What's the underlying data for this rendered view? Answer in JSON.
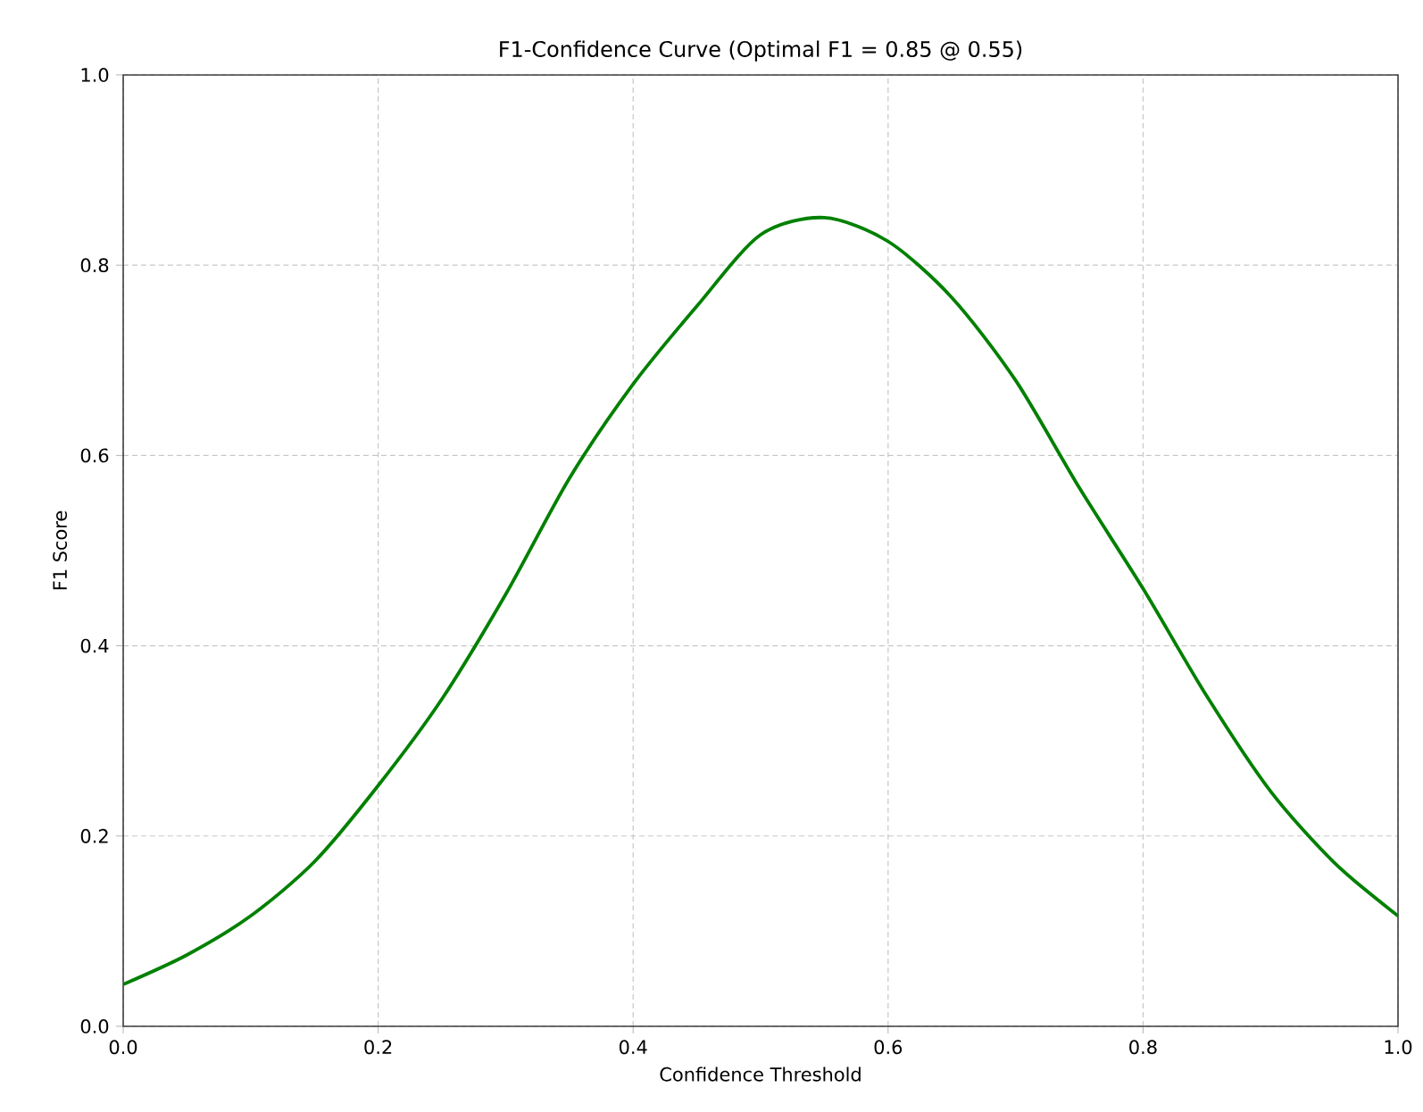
{
  "chart_data": {
    "type": "line",
    "title": "F1-Confidence Curve (Optimal F1 = 0.85 @ 0.55)",
    "xlabel": "Confidence Threshold",
    "ylabel": "F1 Score",
    "x": [
      0,
      0.05,
      0.1,
      0.15,
      0.2,
      0.25,
      0.3,
      0.35,
      0.4,
      0.45,
      0.5,
      0.55,
      0.6,
      0.65,
      0.7,
      0.75,
      0.8,
      0.85,
      0.9,
      0.95,
      1.0
    ],
    "series": [
      {
        "color": "#008000",
        "values": [
          0.044,
          0.075,
          0.116,
          0.173,
          0.253,
          0.344,
          0.454,
          0.576,
          0.675,
          0.757,
          0.832,
          0.85,
          0.825,
          0.766,
          0.679,
          0.566,
          0.46,
          0.347,
          0.247,
          0.172,
          0.116
        ]
      }
    ],
    "xlim": [
      0,
      1
    ],
    "ylim": [
      0,
      1
    ],
    "xticks": [
      {
        "value": 0,
        "label": "0.0"
      },
      0.2,
      0.4,
      0.6,
      0.8,
      {
        "value": 1,
        "label": "1.0"
      }
    ],
    "yticks": [
      {
        "value": 0,
        "label": "0.0"
      },
      0.2,
      0.4,
      0.6,
      0.8,
      {
        "value": 1,
        "label": "1.0"
      }
    ],
    "grid": true,
    "line_style": "solid",
    "marker": "none"
  }
}
